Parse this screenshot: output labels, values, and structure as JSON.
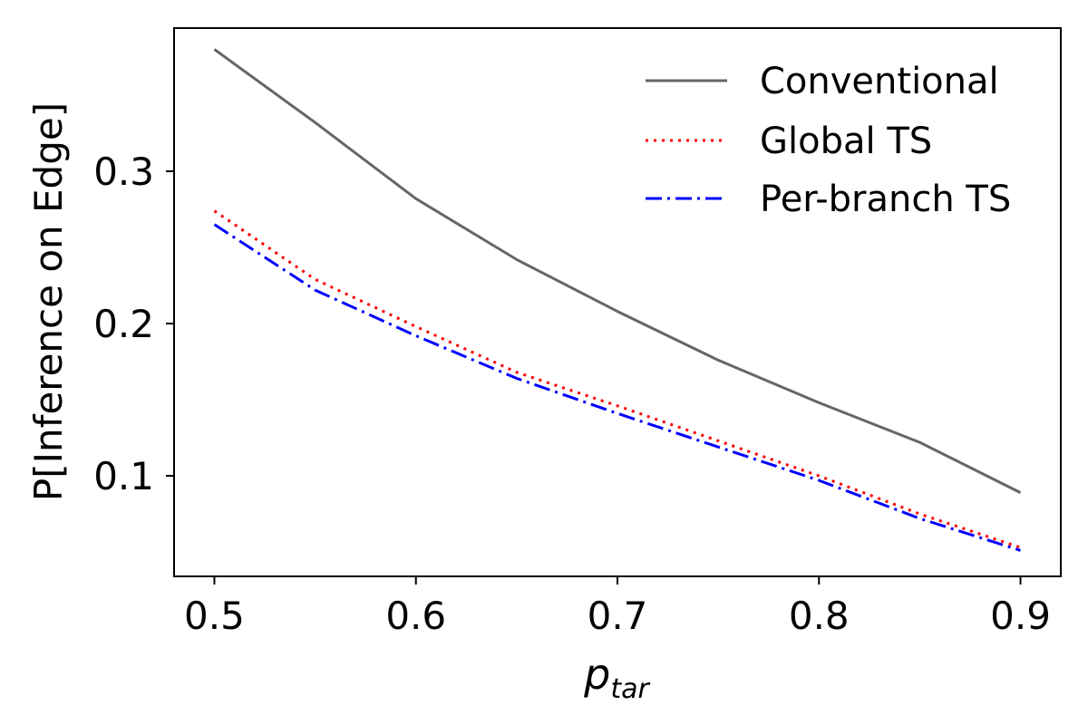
{
  "chart_data": {
    "type": "line",
    "xlabel_main": "p",
    "xlabel_sub": "tar",
    "ylabel": "P[Inference on Edge]",
    "xlim": [
      0.48,
      0.92
    ],
    "ylim": [
      0.034,
      0.394
    ],
    "xticks": [
      0.5,
      0.6,
      0.7,
      0.8,
      0.9
    ],
    "xtick_labels": [
      "0.5",
      "0.6",
      "0.7",
      "0.8",
      "0.9"
    ],
    "yticks": [
      0.1,
      0.2,
      0.3
    ],
    "ytick_labels": [
      "0.1",
      "0.2",
      "0.3"
    ],
    "grid": false,
    "legend_position": "top-right",
    "x": [
      0.5,
      0.55,
      0.6,
      0.65,
      0.7,
      0.75,
      0.8,
      0.85,
      0.9
    ],
    "series": [
      {
        "name": "Conventional",
        "values": [
          0.38,
          0.332,
          0.282,
          0.242,
          0.208,
          0.176,
          0.148,
          0.122,
          0.089
        ],
        "color": "#666666",
        "style": "solid"
      },
      {
        "name": "Global TS",
        "values": [
          0.274,
          0.229,
          0.198,
          0.168,
          0.146,
          0.123,
          0.1,
          0.075,
          0.053
        ],
        "color": "#ff0000",
        "style": "dotted"
      },
      {
        "name": "Per-branch TS",
        "values": [
          0.265,
          0.222,
          0.192,
          0.164,
          0.141,
          0.119,
          0.097,
          0.072,
          0.051
        ],
        "color": "#0000ff",
        "style": "dashdot"
      }
    ]
  }
}
